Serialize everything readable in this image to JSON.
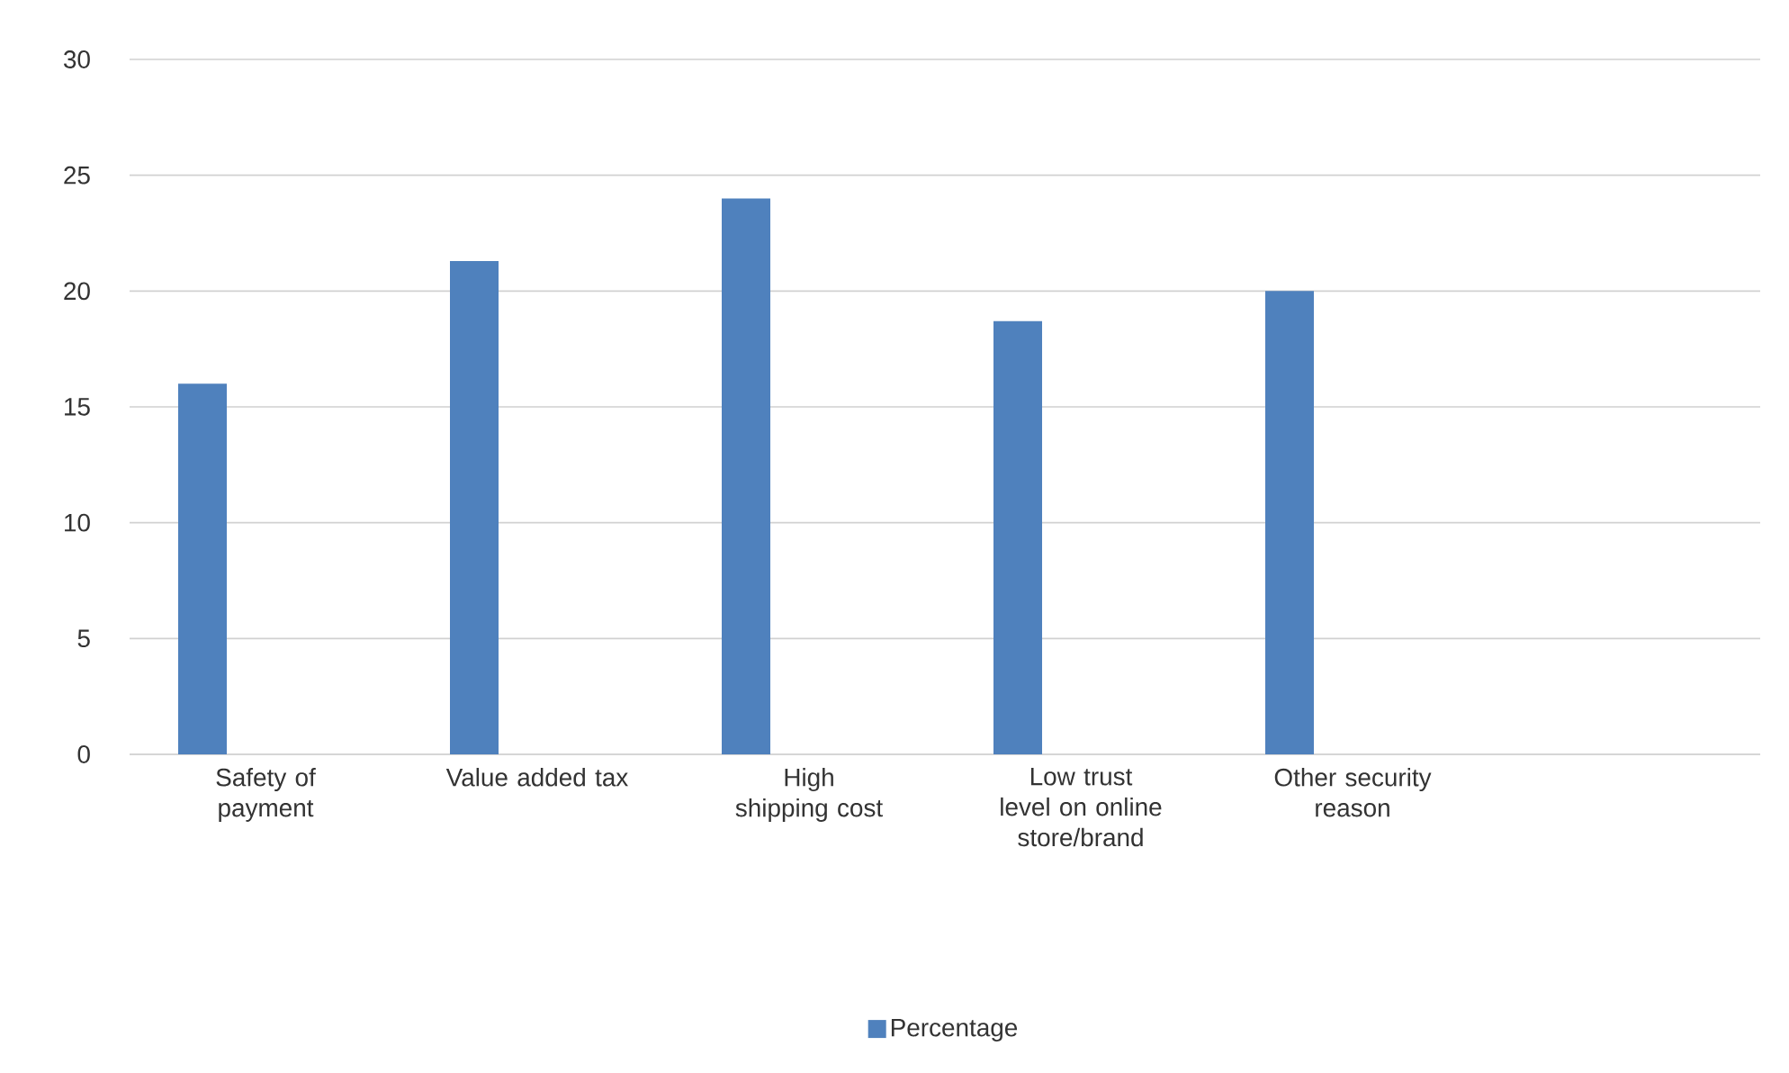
{
  "chart_data": {
    "type": "bar",
    "categories": [
      "Safety of payment",
      "Value added tax",
      "High shipping cost",
      "Low trust level on online store/brand",
      "Other security reason",
      null
    ],
    "series": [
      {
        "name": "Percentage",
        "color": "#4f81bd",
        "values": [
          16,
          21.3,
          24,
          18.7,
          20,
          null
        ]
      }
    ],
    "ylim": [
      0,
      30
    ],
    "yticks": [
      0,
      5,
      10,
      15,
      20,
      25,
      30
    ],
    "grid": "y",
    "legend": "bottom"
  }
}
